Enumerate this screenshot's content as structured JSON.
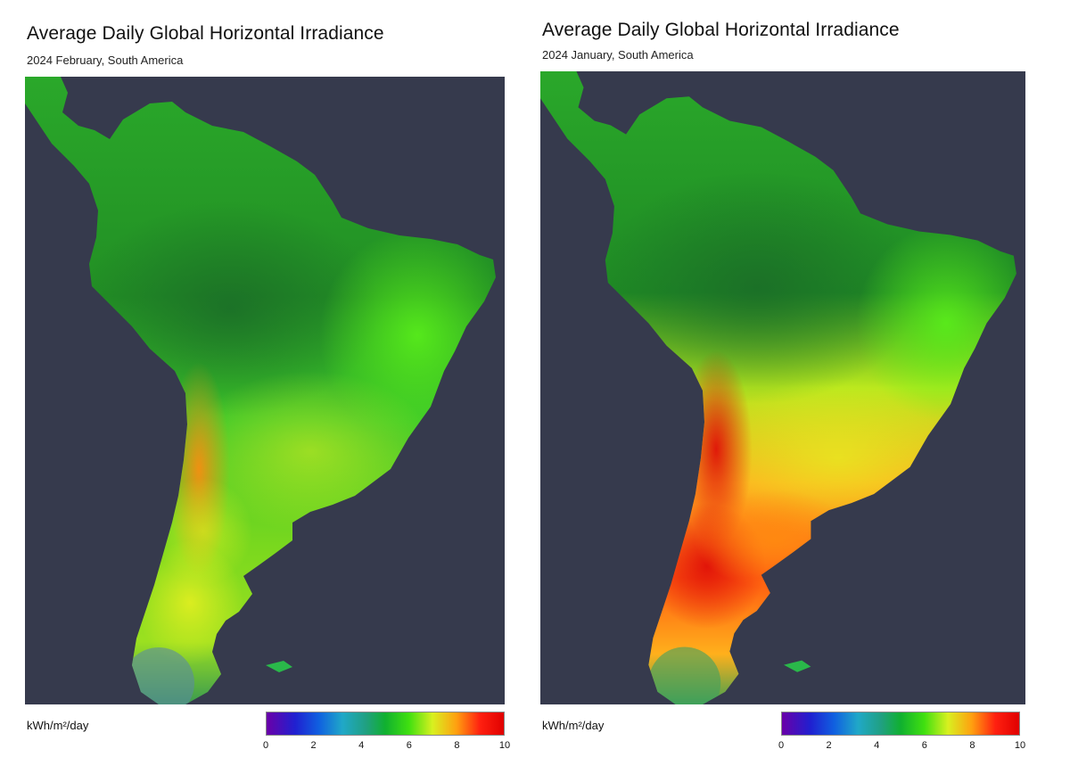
{
  "maps": [
    {
      "title": "Average Daily Global Horizontal Irradiance",
      "subtitle": "2024 February, South America",
      "unit_label": "kWh/m²/day",
      "colorbar_ticks": [
        "0",
        "2",
        "4",
        "6",
        "8",
        "10"
      ]
    },
    {
      "title": "Average Daily Global Horizontal Irradiance",
      "subtitle": "2024 January, South America",
      "unit_label": "kWh/m²/day",
      "colorbar_ticks": [
        "0",
        "2",
        "4",
        "6",
        "8",
        "10"
      ]
    }
  ],
  "colors": {
    "ocean": "#363a4d",
    "scale": [
      "#6a00a8",
      "#1020e0",
      "#18a0d8",
      "#20a0a0",
      "#10c030",
      "#40e010",
      "#d8f020",
      "#ffa010",
      "#ff1010",
      "#e80000"
    ]
  }
}
